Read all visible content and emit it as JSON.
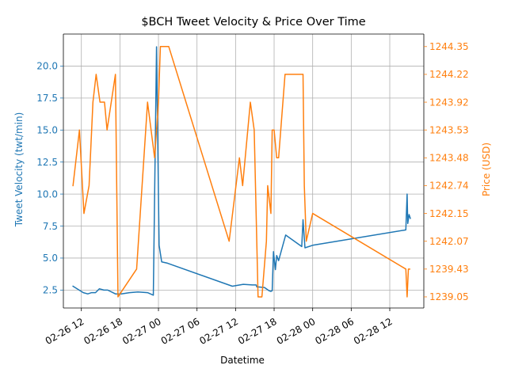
{
  "chart_data": {
    "type": "line",
    "title": "$BCH Tweet Velocity & Price Over Time",
    "xlabel": "Datetime",
    "ylabel_left": "Tweet Velocity (twt/min)",
    "ylabel_right": "Price (USD)",
    "colors": {
      "left": "#1f77b4",
      "right": "#ff7f0e",
      "grid": "#b0b0b0",
      "axis": "#000000"
    },
    "grid": true,
    "x_ticks": [
      "02-26 12",
      "02-26 18",
      "02-27 00",
      "02-27 06",
      "02-27 12",
      "02-27 18",
      "02-28 00",
      "02-28 06",
      "02-28 12"
    ],
    "x_tick_hours": [
      0,
      6,
      12,
      18,
      24,
      30,
      36,
      42,
      48
    ],
    "xlim_hours": [
      -2.8,
      53.3
    ],
    "left_axis": {
      "ylim": [
        1.1,
        22.5
      ],
      "ticks": [
        2.5,
        5.0,
        7.5,
        10.0,
        12.5,
        15.0,
        17.5,
        20.0
      ],
      "tick_labels": [
        "2.5",
        "5.0",
        "7.5",
        "10.0",
        "12.5",
        "15.0",
        "17.5",
        "20.0"
      ]
    },
    "right_axis": {
      "note": "categorical price levels, evenly spaced",
      "tick_labels": [
        "1239.05",
        "1239.43",
        "1242.07",
        "1242.15",
        "1242.74",
        "1243.48",
        "1243.53",
        "1243.92",
        "1244.22",
        "1244.35"
      ],
      "index_lim": [
        -0.4,
        9.45
      ]
    },
    "series": [
      {
        "name": "Tweet Velocity (twt/min)",
        "axis": "left",
        "x_hours": [
          -1.3,
          0.3,
          1.0,
          1.6,
          2.2,
          2.8,
          3.5,
          4.1,
          4.9,
          5.3,
          6.2,
          7.5,
          8.8,
          10.3,
          11.2,
          11.7,
          12.1,
          12.5,
          13.4,
          23.5,
          25.2,
          26.6,
          27.2,
          27.3,
          27.5,
          28.5,
          29.2,
          29.5,
          29.7,
          29.9,
          30.2,
          30.4,
          30.7,
          31.8,
          34.3,
          34.5,
          34.8,
          36.0,
          50.5,
          50.7,
          50.8,
          51.0,
          51.2
        ],
        "values": [
          2.8,
          2.3,
          2.2,
          2.3,
          2.3,
          2.6,
          2.5,
          2.5,
          2.3,
          2.2,
          2.2,
          2.3,
          2.35,
          2.3,
          2.1,
          21.5,
          6.0,
          4.7,
          4.6,
          2.8,
          2.95,
          2.9,
          2.9,
          2.75,
          2.75,
          2.7,
          2.45,
          2.4,
          2.45,
          5.5,
          4.1,
          5.2,
          4.8,
          6.8,
          5.9,
          8.0,
          5.8,
          6.0,
          7.2,
          10.0,
          7.7,
          8.4,
          8.1
        ]
      },
      {
        "name": "Price (USD)",
        "axis": "right",
        "x_hours": [
          -1.3,
          -0.8,
          -0.3,
          0.4,
          1.2,
          1.8,
          2.3,
          2.9,
          3.6,
          4.0,
          5.3,
          5.7,
          8.6,
          10.3,
          11.4,
          12.0,
          12.3,
          13.6,
          23.0,
          24.6,
          25.1,
          26.3,
          26.9,
          27.5,
          28.1,
          28.8,
          29.0,
          29.5,
          29.7,
          30.0,
          30.4,
          30.7,
          31.7,
          34.5,
          34.7,
          35.0,
          36.0,
          50.5,
          50.7,
          50.9,
          51.1
        ],
        "values": [
          "1242.74",
          "1243.48",
          "1243.53",
          "1242.15",
          "1242.74",
          "1243.92",
          "1244.22",
          "1243.92",
          "1243.92",
          "1243.53",
          "1244.22",
          "1239.05",
          "1239.43",
          "1243.92",
          "1243.48",
          "1243.92",
          "1244.35",
          "1244.35",
          "1242.07",
          "1243.48",
          "1242.74",
          "1243.92",
          "1243.53",
          "1239.05",
          "1239.05",
          "1242.07",
          "1242.74",
          "1242.15",
          "1243.53",
          "1243.53",
          "1243.48",
          "1243.48",
          "1244.22",
          "1244.22",
          "1242.74",
          "1242.07",
          "1242.15",
          "1239.43",
          "1239.05",
          "1239.43",
          "1239.43"
        ]
      }
    ]
  }
}
